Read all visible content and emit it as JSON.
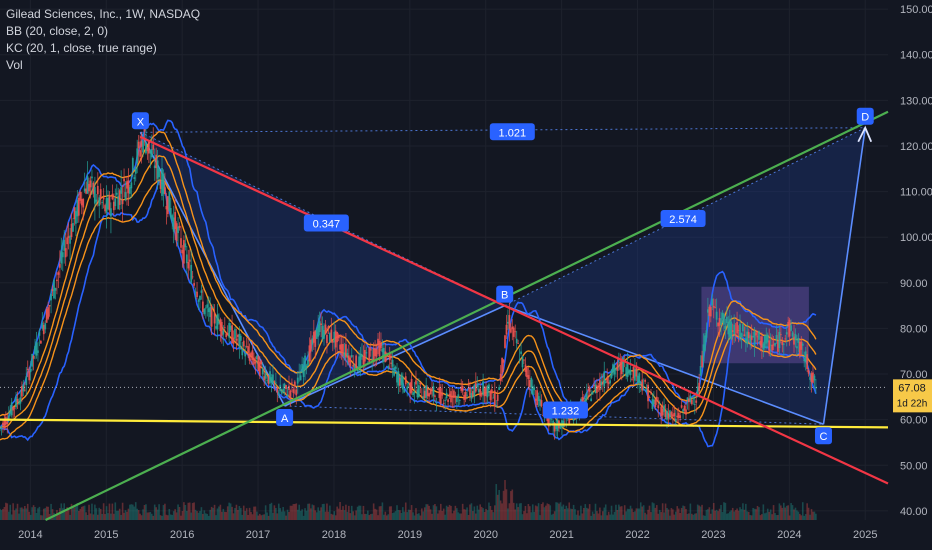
{
  "legend": {
    "title": "Gilead Sciences, Inc., 1W, NASDAQ",
    "bb": "BB (20, close, 2, 0)",
    "kc": "KC (20, 1, close, true range)",
    "vol": "Vol"
  },
  "price_badge": {
    "price": "67.08",
    "timer": "1d 22h"
  },
  "colors": {
    "background": "#131722",
    "grid": "#1e222d",
    "bb": "#2962ff",
    "kc": "#f7931a",
    "candle_up": "#26a69a",
    "candle_down": "#ef5350",
    "support": "#ffeb3b",
    "trend_up": "#4caf50",
    "trend_down": "#f23645",
    "harmonic_line": "#2962ff",
    "harmonic_fill": "#1e3a8a",
    "label_bg": "#2962ff",
    "box": "#9c6bd6",
    "price_badge": "#f7c948"
  },
  "chart_data": {
    "type": "candlestick",
    "symbol": "Gilead Sciences, Inc.",
    "interval": "1W",
    "exchange": "NASDAQ",
    "ylim": [
      38,
      152
    ],
    "y_ticks": [
      "150.00",
      "140.00",
      "130.00",
      "120.00",
      "110.00",
      "100.00",
      "90.00",
      "80.00",
      "70.00",
      "60.00",
      "50.00",
      "40.00"
    ],
    "y_tick_values": [
      150,
      140,
      130,
      120,
      110,
      100,
      90,
      80,
      70,
      60,
      50,
      40
    ],
    "xlim": [
      2013.6,
      2025.3
    ],
    "x_ticks": [
      "2014",
      "2015",
      "2016",
      "2017",
      "2018",
      "2019",
      "2020",
      "2021",
      "2022",
      "2023",
      "2024",
      "2025"
    ],
    "x_tick_values": [
      2014,
      2015,
      2016,
      2017,
      2018,
      2019,
      2020,
      2021,
      2022,
      2023,
      2024,
      2025
    ],
    "current_price": 67.08,
    "price_path": [
      [
        2013.6,
        58
      ],
      [
        2013.9,
        66
      ],
      [
        2014.2,
        82
      ],
      [
        2014.5,
        100
      ],
      [
        2014.75,
        112
      ],
      [
        2015.0,
        106
      ],
      [
        2015.3,
        112
      ],
      [
        2015.5,
        122
      ],
      [
        2015.7,
        114
      ],
      [
        2016.0,
        98
      ],
      [
        2016.3,
        84
      ],
      [
        2016.7,
        78
      ],
      [
        2017.0,
        72
      ],
      [
        2017.3,
        66
      ],
      [
        2017.5,
        67
      ],
      [
        2017.8,
        80
      ],
      [
        2018.0,
        78
      ],
      [
        2018.3,
        72
      ],
      [
        2018.6,
        76
      ],
      [
        2018.9,
        68
      ],
      [
        2019.2,
        66
      ],
      [
        2019.5,
        65
      ],
      [
        2019.8,
        66
      ],
      [
        2020.0,
        67
      ],
      [
        2020.15,
        64
      ],
      [
        2020.3,
        82
      ],
      [
        2020.5,
        72
      ],
      [
        2020.7,
        64
      ],
      [
        2020.9,
        58
      ],
      [
        2021.2,
        62
      ],
      [
        2021.5,
        68
      ],
      [
        2021.8,
        72
      ],
      [
        2022.0,
        70
      ],
      [
        2022.2,
        64
      ],
      [
        2022.5,
        60
      ],
      [
        2022.8,
        66
      ],
      [
        2022.95,
        85
      ],
      [
        2023.2,
        80
      ],
      [
        2023.5,
        78
      ],
      [
        2023.8,
        76
      ],
      [
        2024.0,
        80
      ],
      [
        2024.2,
        74
      ],
      [
        2024.35,
        67.08
      ]
    ],
    "harmonic_points": [
      {
        "label": "X",
        "x": 2015.45,
        "y": 123
      },
      {
        "label": "A",
        "x": 2017.35,
        "y": 63
      },
      {
        "label": "B",
        "x": 2020.25,
        "y": 85
      },
      {
        "label": "C",
        "x": 2024.45,
        "y": 59
      },
      {
        "label": "D",
        "x": 2025.0,
        "y": 124
      }
    ],
    "ratios": [
      {
        "label": "1.021",
        "x": 2020.35,
        "y": 123
      },
      {
        "label": "0.347",
        "x": 2017.9,
        "y": 103
      },
      {
        "label": "2.574",
        "x": 2022.6,
        "y": 104
      },
      {
        "label": "1.232",
        "x": 2021.05,
        "y": 62
      }
    ],
    "trendlines": [
      {
        "name": "support",
        "color": "support",
        "from": [
          2013.6,
          60
        ],
        "to": [
          2025.3,
          58.3
        ]
      },
      {
        "name": "rising",
        "color": "trend_up",
        "from": [
          2014.2,
          38
        ],
        "to": [
          2025.3,
          127.5
        ]
      },
      {
        "name": "falling",
        "color": "trend_down",
        "from": [
          2015.45,
          122
        ],
        "to": [
          2025.3,
          46
        ]
      }
    ],
    "box": {
      "x0": 2022.85,
      "x1": 2024.25,
      "y0": 72.5,
      "y1": 89
    }
  }
}
